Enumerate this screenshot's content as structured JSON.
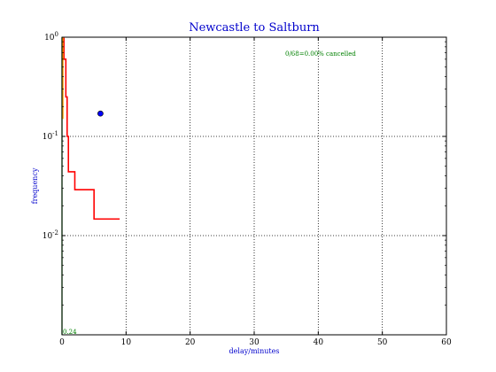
{
  "chart_data": {
    "type": "line",
    "title": "Newcastle to Saltburn",
    "xlabel": "delay/minutes",
    "ylabel": "frequency",
    "xscale": "linear",
    "yscale": "log",
    "xlim": [
      0,
      60
    ],
    "ylim": [
      0.001,
      1
    ],
    "x_ticks": [
      0,
      10,
      20,
      30,
      40,
      50,
      60
    ],
    "x_tick_labels": [
      "0",
      "10",
      "20",
      "30",
      "40",
      "50",
      "60"
    ],
    "y_ticks": [
      1,
      0.1,
      0.01
    ],
    "y_tick_labels": [
      {
        "base": "10",
        "exp": "0"
      },
      {
        "base": "10",
        "exp": "-1"
      },
      {
        "base": "10",
        "exp": "-2"
      }
    ],
    "grid": true,
    "annotation_cancelled": "0/68=0.00% cancelled",
    "annotation_bottom": "0.24",
    "series": [
      {
        "color": "#ff0000",
        "style": "step",
        "x": [
          0,
          0.3,
          0.3,
          0.6,
          0.6,
          0.8,
          0.8,
          1,
          1,
          2,
          2,
          3,
          3,
          5,
          5,
          6,
          6,
          9
        ],
        "y": [
          0.97,
          0.97,
          0.6,
          0.6,
          0.25,
          0.25,
          0.1,
          0.1,
          0.044,
          0.044,
          0.029,
          0.029,
          0.029,
          0.029,
          0.0147,
          0.0147,
          0.0147,
          0.0147
        ]
      },
      {
        "color": "#008000",
        "style": "vertical",
        "x": [
          0,
          0
        ],
        "y": [
          0.001,
          1
        ]
      },
      {
        "color": "#ffa500",
        "style": "vertical",
        "x": [
          0.15,
          0.15
        ],
        "y": [
          0.15,
          1
        ]
      }
    ],
    "points": [
      {
        "x": 6,
        "y": 0.17,
        "color": "#0000ff"
      }
    ],
    "colors": {
      "title": "#0000cc",
      "axis_label": "#0000cc",
      "annotation": "#008000",
      "grid": "#000000"
    }
  }
}
